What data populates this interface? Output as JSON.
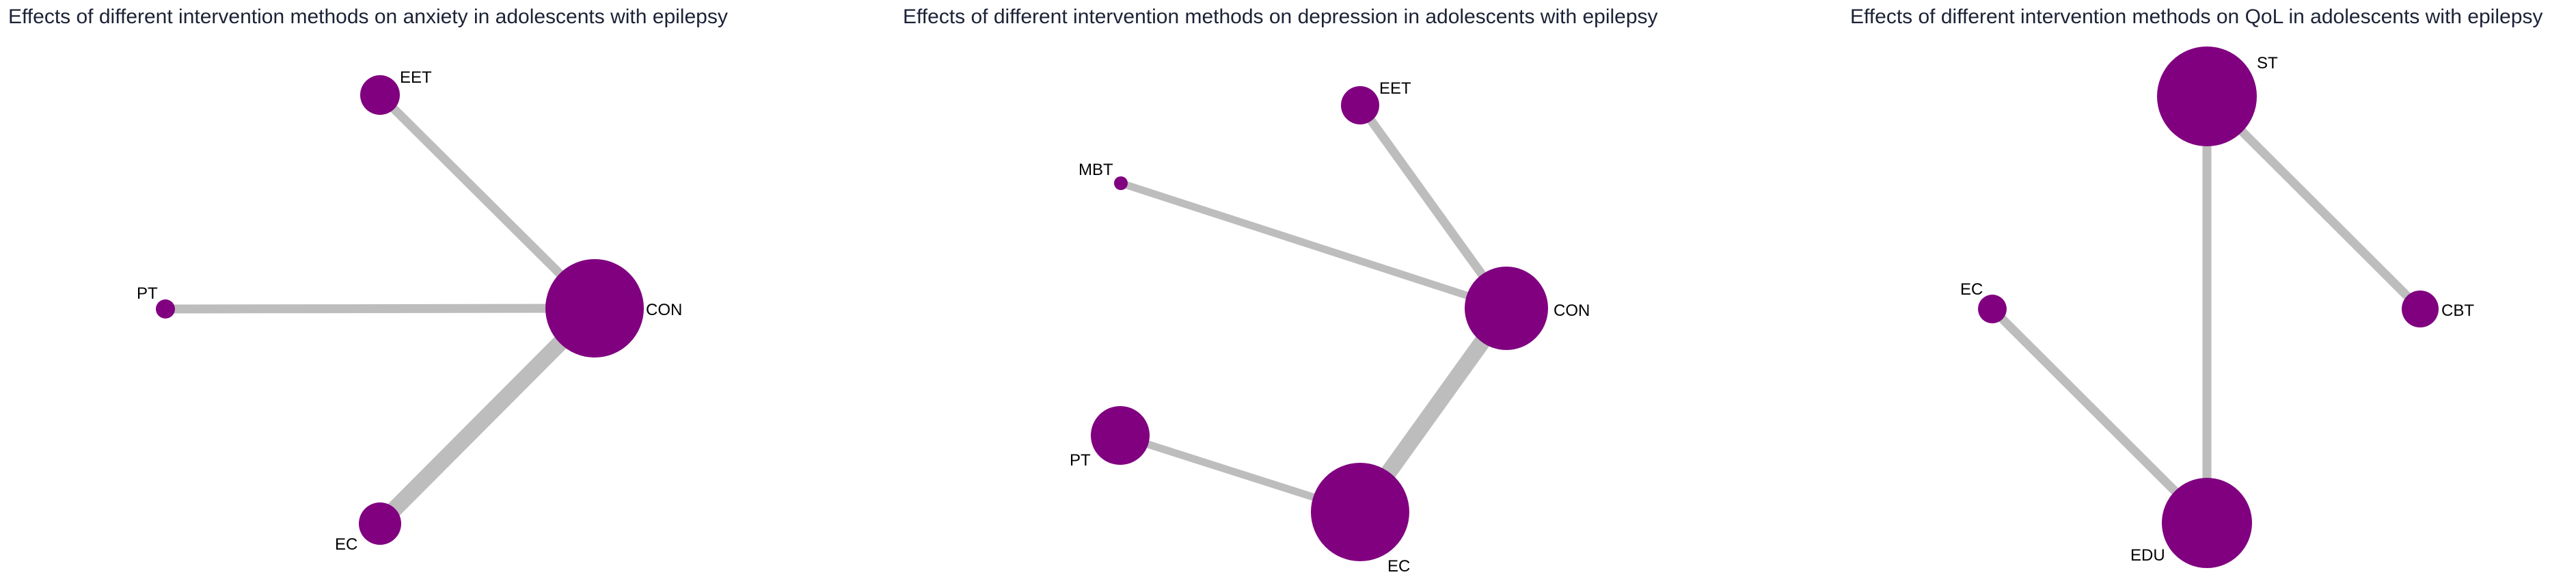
{
  "styles": {
    "node_color": "#800080",
    "edge_color": "#bdbdbd",
    "title_color": "#1c2236",
    "label_color": "#000000"
  },
  "panels": [
    {
      "title": "Effects of different intervention methods on anxiety in adolescents with epilepsy",
      "nodes": [
        {
          "id": "EET",
          "label": "EET"
        },
        {
          "id": "PT",
          "label": "PT"
        },
        {
          "id": "CON",
          "label": "CON"
        },
        {
          "id": "EC",
          "label": "EC"
        }
      ],
      "edges": [
        {
          "source": "EET",
          "target": "CON"
        },
        {
          "source": "PT",
          "target": "CON"
        },
        {
          "source": "EC",
          "target": "CON"
        }
      ]
    },
    {
      "title": "Effects of different intervention methods on depression in adolescents with epilepsy",
      "nodes": [
        {
          "id": "EET",
          "label": "EET"
        },
        {
          "id": "MBT",
          "label": "MBT"
        },
        {
          "id": "CON",
          "label": "CON"
        },
        {
          "id": "PT",
          "label": "PT"
        },
        {
          "id": "EC",
          "label": "EC"
        }
      ],
      "edges": [
        {
          "source": "EET",
          "target": "CON"
        },
        {
          "source": "MBT",
          "target": "CON"
        },
        {
          "source": "EC",
          "target": "CON"
        },
        {
          "source": "PT",
          "target": "EC"
        }
      ]
    },
    {
      "title": "Effects of different intervention methods on QoL in adolescents with epilepsy",
      "nodes": [
        {
          "id": "ST",
          "label": "ST"
        },
        {
          "id": "EC",
          "label": "EC"
        },
        {
          "id": "CBT",
          "label": "CBT"
        },
        {
          "id": "EDU",
          "label": "EDU"
        }
      ],
      "edges": [
        {
          "source": "ST",
          "target": "CBT"
        },
        {
          "source": "ST",
          "target": "EDU"
        },
        {
          "source": "EC",
          "target": "EDU"
        }
      ]
    }
  ]
}
